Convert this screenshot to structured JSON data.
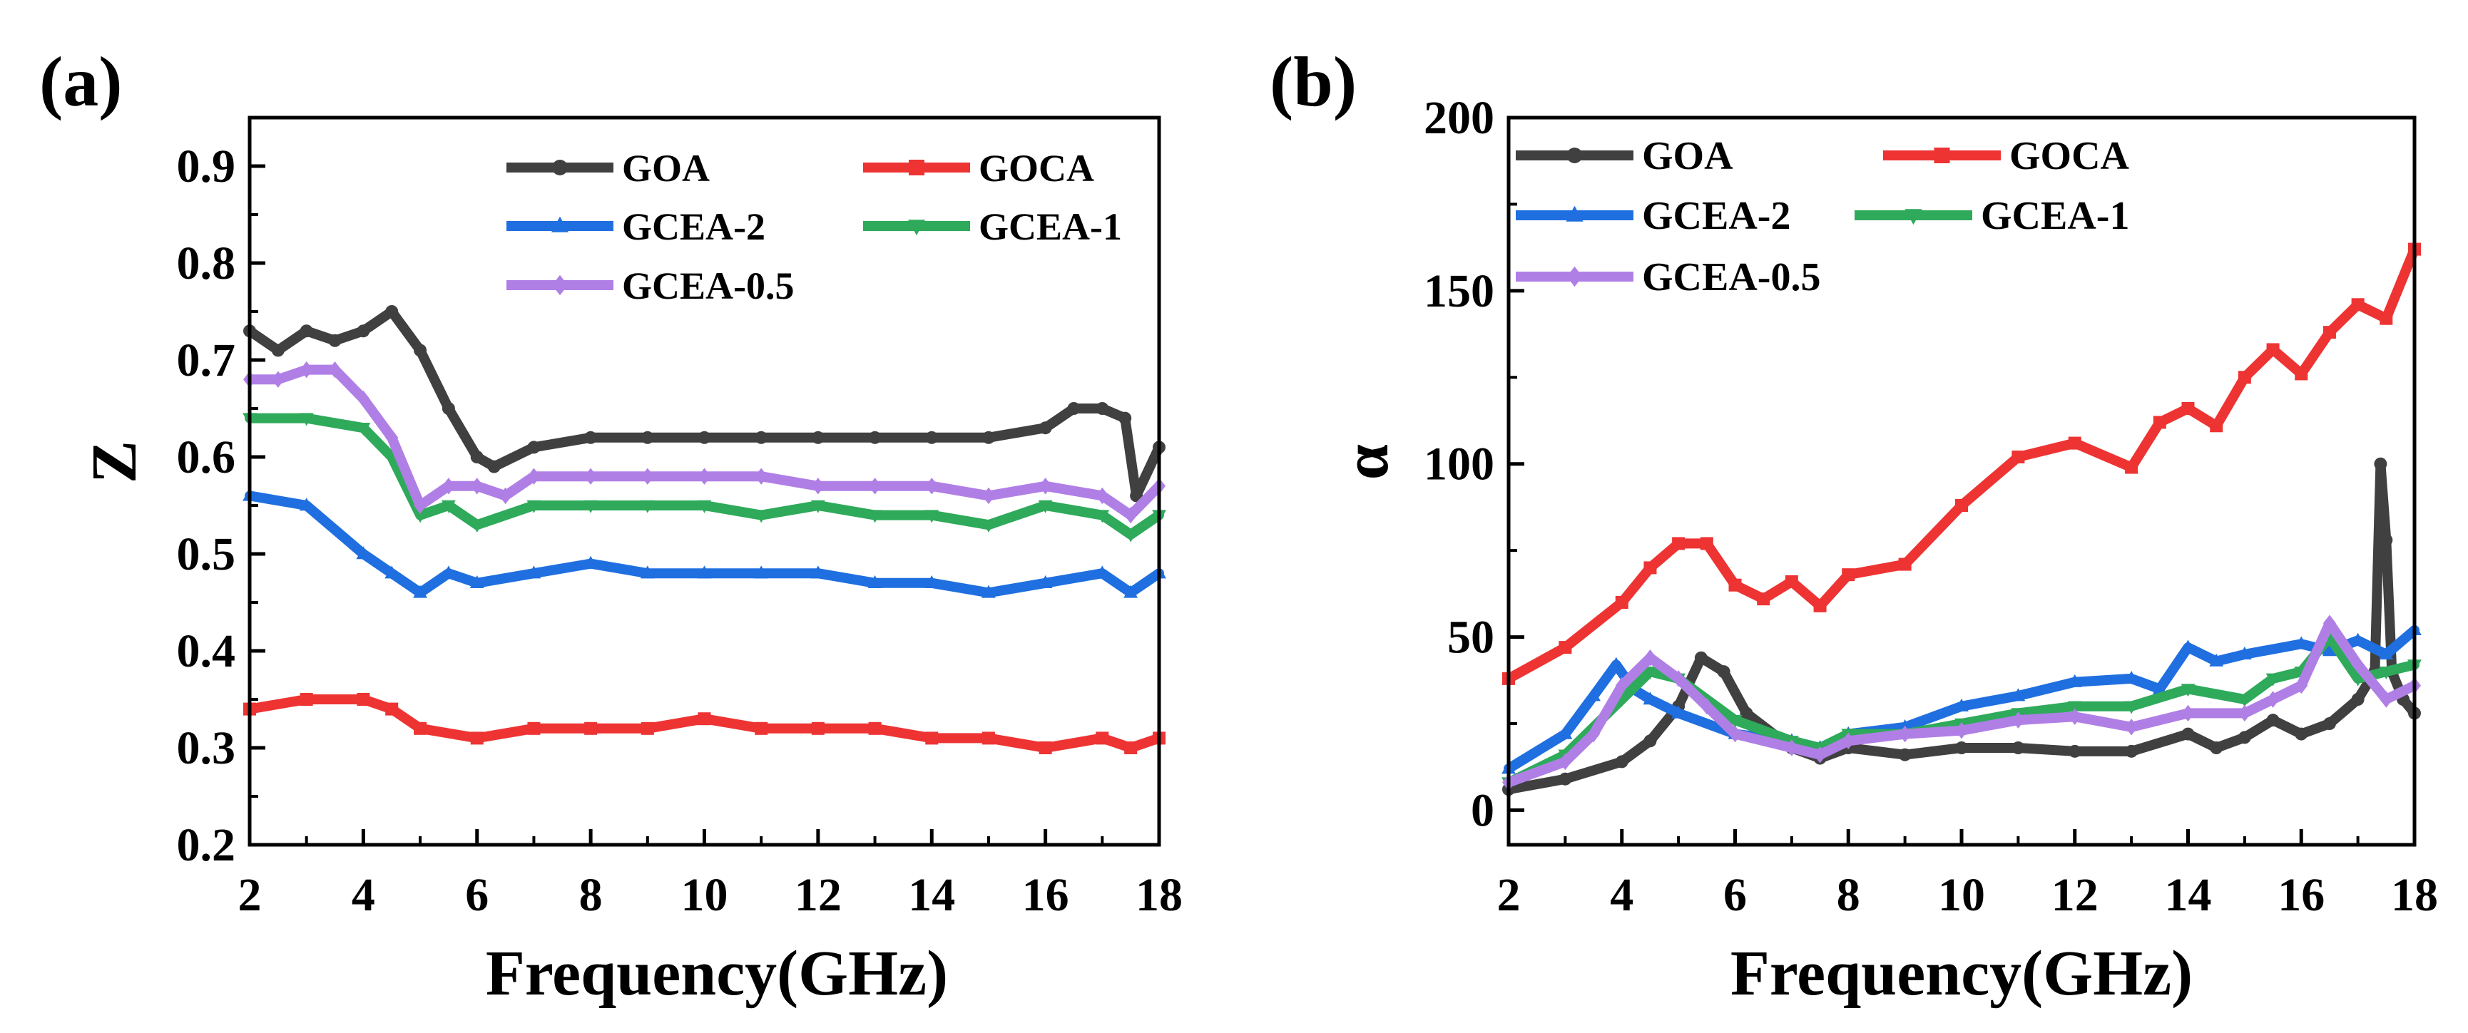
{
  "colors": {
    "GOA": "#404040",
    "GOCA": "#ee3333",
    "GCEA-2": "#1f6fe0",
    "GCEA-1": "#2eaa5a",
    "GCEA-0.5": "#b07fe6"
  },
  "chart_data": [
    {
      "panel_label": "(a)",
      "type": "line",
      "xlabel": "Frequency(GHz)",
      "ylabel": "Z",
      "xlim": [
        2,
        18
      ],
      "ylim": [
        0.2,
        0.95
      ],
      "xticks": [
        2,
        4,
        6,
        8,
        10,
        12,
        14,
        16,
        18
      ],
      "xtick_labels": [
        "2",
        "4",
        "6",
        "8",
        "10",
        "12",
        "14",
        "16",
        "18"
      ],
      "yticks": [
        0.2,
        0.3,
        0.4,
        0.5,
        0.6,
        0.7,
        0.8,
        0.9
      ],
      "ytick_labels": [
        "0.2",
        "0.3",
        "0.4",
        "0.5",
        "0.6",
        "0.7",
        "0.8",
        "0.9"
      ],
      "legend_position": "top-right",
      "series": [
        {
          "name": "GOA",
          "marker": "circle",
          "x": [
            2,
            2.5,
            3,
            3.5,
            4,
            4.5,
            5,
            5.5,
            6,
            6.3,
            7,
            8,
            9,
            10,
            11,
            12,
            13,
            14,
            15,
            16,
            16.5,
            17,
            17.4,
            17.6,
            18
          ],
          "y": [
            0.73,
            0.71,
            0.73,
            0.72,
            0.73,
            0.75,
            0.71,
            0.65,
            0.6,
            0.59,
            0.61,
            0.62,
            0.62,
            0.62,
            0.62,
            0.62,
            0.62,
            0.62,
            0.62,
            0.63,
            0.65,
            0.65,
            0.64,
            0.56,
            0.61
          ]
        },
        {
          "name": "GOCA",
          "marker": "square",
          "x": [
            2,
            3,
            4,
            4.5,
            5,
            6,
            7,
            8,
            9,
            10,
            11,
            12,
            13,
            14,
            15,
            16,
            17,
            17.5,
            18
          ],
          "y": [
            0.34,
            0.35,
            0.35,
            0.34,
            0.32,
            0.31,
            0.32,
            0.32,
            0.32,
            0.33,
            0.32,
            0.32,
            0.32,
            0.31,
            0.31,
            0.3,
            0.31,
            0.3,
            0.31
          ]
        },
        {
          "name": "GCEA-2",
          "marker": "triangle-up",
          "x": [
            2,
            3,
            4,
            4.5,
            5,
            5.5,
            6,
            7,
            8,
            9,
            10,
            11,
            12,
            13,
            14,
            15,
            16,
            17,
            17.5,
            18
          ],
          "y": [
            0.56,
            0.55,
            0.5,
            0.48,
            0.46,
            0.48,
            0.47,
            0.48,
            0.49,
            0.48,
            0.48,
            0.48,
            0.48,
            0.47,
            0.47,
            0.46,
            0.47,
            0.48,
            0.46,
            0.48
          ]
        },
        {
          "name": "GCEA-1",
          "marker": "triangle-down",
          "x": [
            2,
            3,
            4,
            4.5,
            5,
            5.5,
            6,
            7,
            8,
            9,
            10,
            11,
            12,
            13,
            14,
            15,
            16,
            17,
            17.5,
            18
          ],
          "y": [
            0.64,
            0.64,
            0.63,
            0.6,
            0.54,
            0.55,
            0.53,
            0.55,
            0.55,
            0.55,
            0.55,
            0.54,
            0.55,
            0.54,
            0.54,
            0.53,
            0.55,
            0.54,
            0.52,
            0.54
          ]
        },
        {
          "name": "GCEA-0.5",
          "marker": "diamond",
          "x": [
            2,
            2.5,
            3,
            3.5,
            4,
            4.5,
            5,
            5.5,
            6,
            6.5,
            7,
            8,
            9,
            10,
            11,
            12,
            13,
            14,
            15,
            16,
            17,
            17.5,
            18
          ],
          "y": [
            0.68,
            0.68,
            0.69,
            0.69,
            0.66,
            0.62,
            0.55,
            0.57,
            0.57,
            0.56,
            0.58,
            0.58,
            0.58,
            0.58,
            0.58,
            0.57,
            0.57,
            0.57,
            0.56,
            0.57,
            0.56,
            0.54,
            0.57
          ]
        }
      ]
    },
    {
      "panel_label": "(b)",
      "type": "line",
      "xlabel": "Frequency(GHz)",
      "ylabel": "α",
      "xlim": [
        2,
        18
      ],
      "ylim": [
        -10,
        200
      ],
      "xticks": [
        2,
        4,
        6,
        8,
        10,
        12,
        14,
        16,
        18
      ],
      "xtick_labels": [
        "2",
        "4",
        "6",
        "8",
        "10",
        "12",
        "14",
        "16",
        "18"
      ],
      "yticks": [
        0,
        50,
        100,
        150,
        200
      ],
      "ytick_labels": [
        "0",
        "50",
        "100",
        "150",
        "200"
      ],
      "legend_position": "top-left",
      "series": [
        {
          "name": "GOA",
          "marker": "circle",
          "x": [
            2,
            3,
            4,
            4.5,
            5,
            5.4,
            5.8,
            6.2,
            7,
            7.5,
            8,
            9,
            10,
            11,
            12,
            13,
            14,
            14.5,
            15,
            15.5,
            16,
            16.5,
            17,
            17.3,
            17.4,
            17.5,
            17.6,
            17.8,
            18
          ],
          "y": [
            6,
            9,
            14,
            20,
            30,
            44,
            40,
            28,
            18,
            15,
            18,
            16,
            18,
            18,
            17,
            17,
            22,
            18,
            21,
            26,
            22,
            25,
            32,
            40,
            100,
            78,
            40,
            32,
            28
          ]
        },
        {
          "name": "GOCA",
          "marker": "square",
          "x": [
            2,
            3,
            4,
            4.5,
            5,
            5.5,
            6,
            6.5,
            7,
            7.5,
            8,
            9,
            10,
            11,
            12,
            13,
            13.5,
            14,
            14.5,
            15,
            15.5,
            16,
            16.5,
            17,
            17.5,
            18
          ],
          "y": [
            38,
            47,
            60,
            70,
            77,
            77,
            65,
            61,
            66,
            59,
            68,
            71,
            88,
            102,
            106,
            99,
            112,
            116,
            111,
            125,
            133,
            126,
            138,
            146,
            142,
            162
          ]
        },
        {
          "name": "GCEA-2",
          "marker": "triangle-up",
          "x": [
            2,
            3,
            3.5,
            3.9,
            4.2,
            4.5,
            5,
            6,
            7,
            7.5,
            8,
            9,
            10,
            11,
            12,
            13,
            13.5,
            14,
            14.5,
            15,
            16,
            16.5,
            17,
            17.5,
            18
          ],
          "y": [
            12,
            22,
            33,
            42,
            35,
            32,
            28,
            22,
            20,
            18,
            22,
            24,
            30,
            33,
            37,
            38,
            35,
            47,
            43,
            45,
            48,
            46,
            49,
            45,
            52
          ]
        },
        {
          "name": "GCEA-1",
          "marker": "triangle-down",
          "x": [
            2,
            3,
            4,
            4.5,
            5,
            6,
            7,
            7.5,
            8,
            9,
            10,
            11,
            12,
            13,
            14,
            15,
            15.5,
            16,
            16.5,
            17,
            17.5,
            18
          ],
          "y": [
            8,
            16,
            32,
            40,
            38,
            26,
            20,
            18,
            22,
            22,
            25,
            28,
            30,
            30,
            35,
            32,
            38,
            40,
            50,
            38,
            40,
            42
          ]
        },
        {
          "name": "GCEA-0.5",
          "marker": "diamond",
          "x": [
            2,
            3,
            3.5,
            4,
            4.5,
            5,
            5.5,
            6,
            7,
            7.5,
            8,
            9,
            10,
            11,
            12,
            13,
            14,
            15,
            15.5,
            16,
            16.5,
            17,
            17.5,
            18
          ],
          "y": [
            8,
            14,
            22,
            36,
            44,
            38,
            30,
            22,
            18,
            16,
            20,
            22,
            23,
            26,
            27,
            24,
            28,
            28,
            32,
            36,
            54,
            42,
            32,
            36
          ]
        }
      ]
    }
  ]
}
